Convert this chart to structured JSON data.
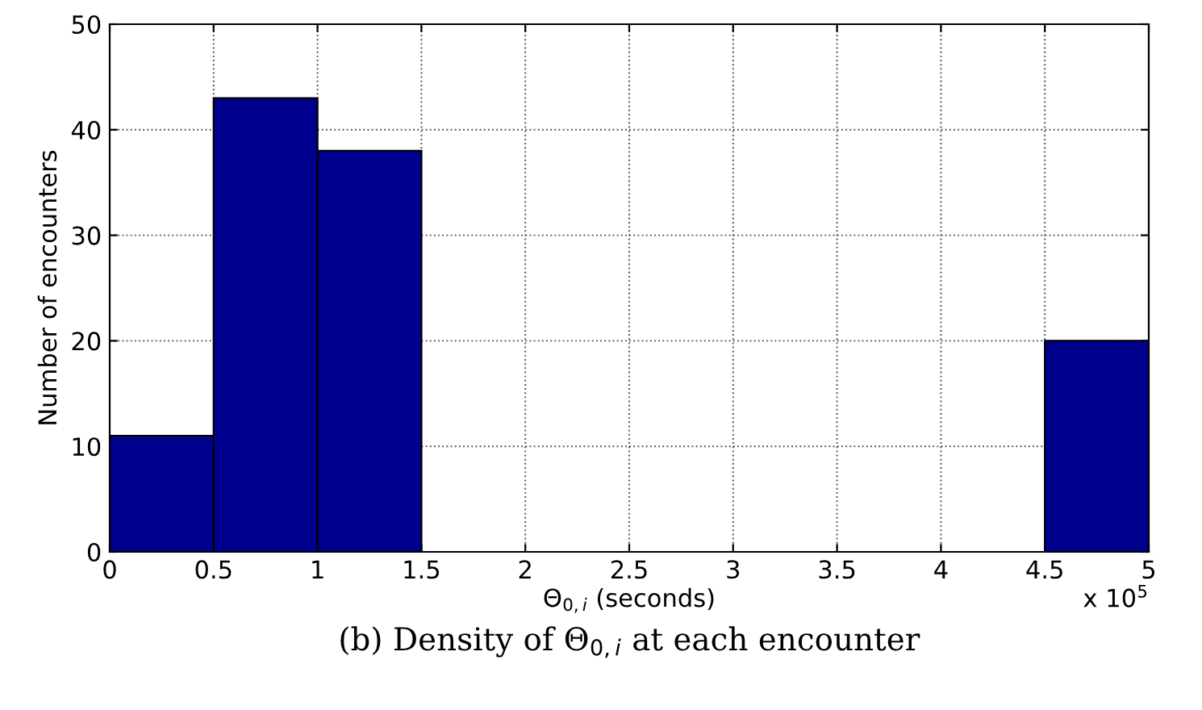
{
  "chart_data": {
    "type": "histogram",
    "bins": [
      0,
      0.5,
      1,
      1.5,
      2,
      2.5,
      3,
      3.5,
      4,
      4.5,
      5
    ],
    "values": [
      11,
      43,
      38,
      0,
      0,
      0,
      0,
      0,
      0,
      20
    ],
    "color": "#00008f",
    "xlabel": "Θ$_{0,i}$ (seconds)",
    "ylabel": "Number of encounters",
    "xlim": [
      0,
      5
    ],
    "xticks": [
      0,
      0.5,
      1,
      1.5,
      2,
      2.5,
      3,
      3.5,
      4,
      4.5,
      5
    ],
    "ylim": [
      0,
      50
    ],
    "yticks": [
      0,
      10,
      20,
      30,
      40,
      50
    ],
    "grid": true,
    "annotations": [
      "x 10$^{5}$",
      "(b) Density of Θ$_{0,i}$ at each encounter"
    ]
  }
}
